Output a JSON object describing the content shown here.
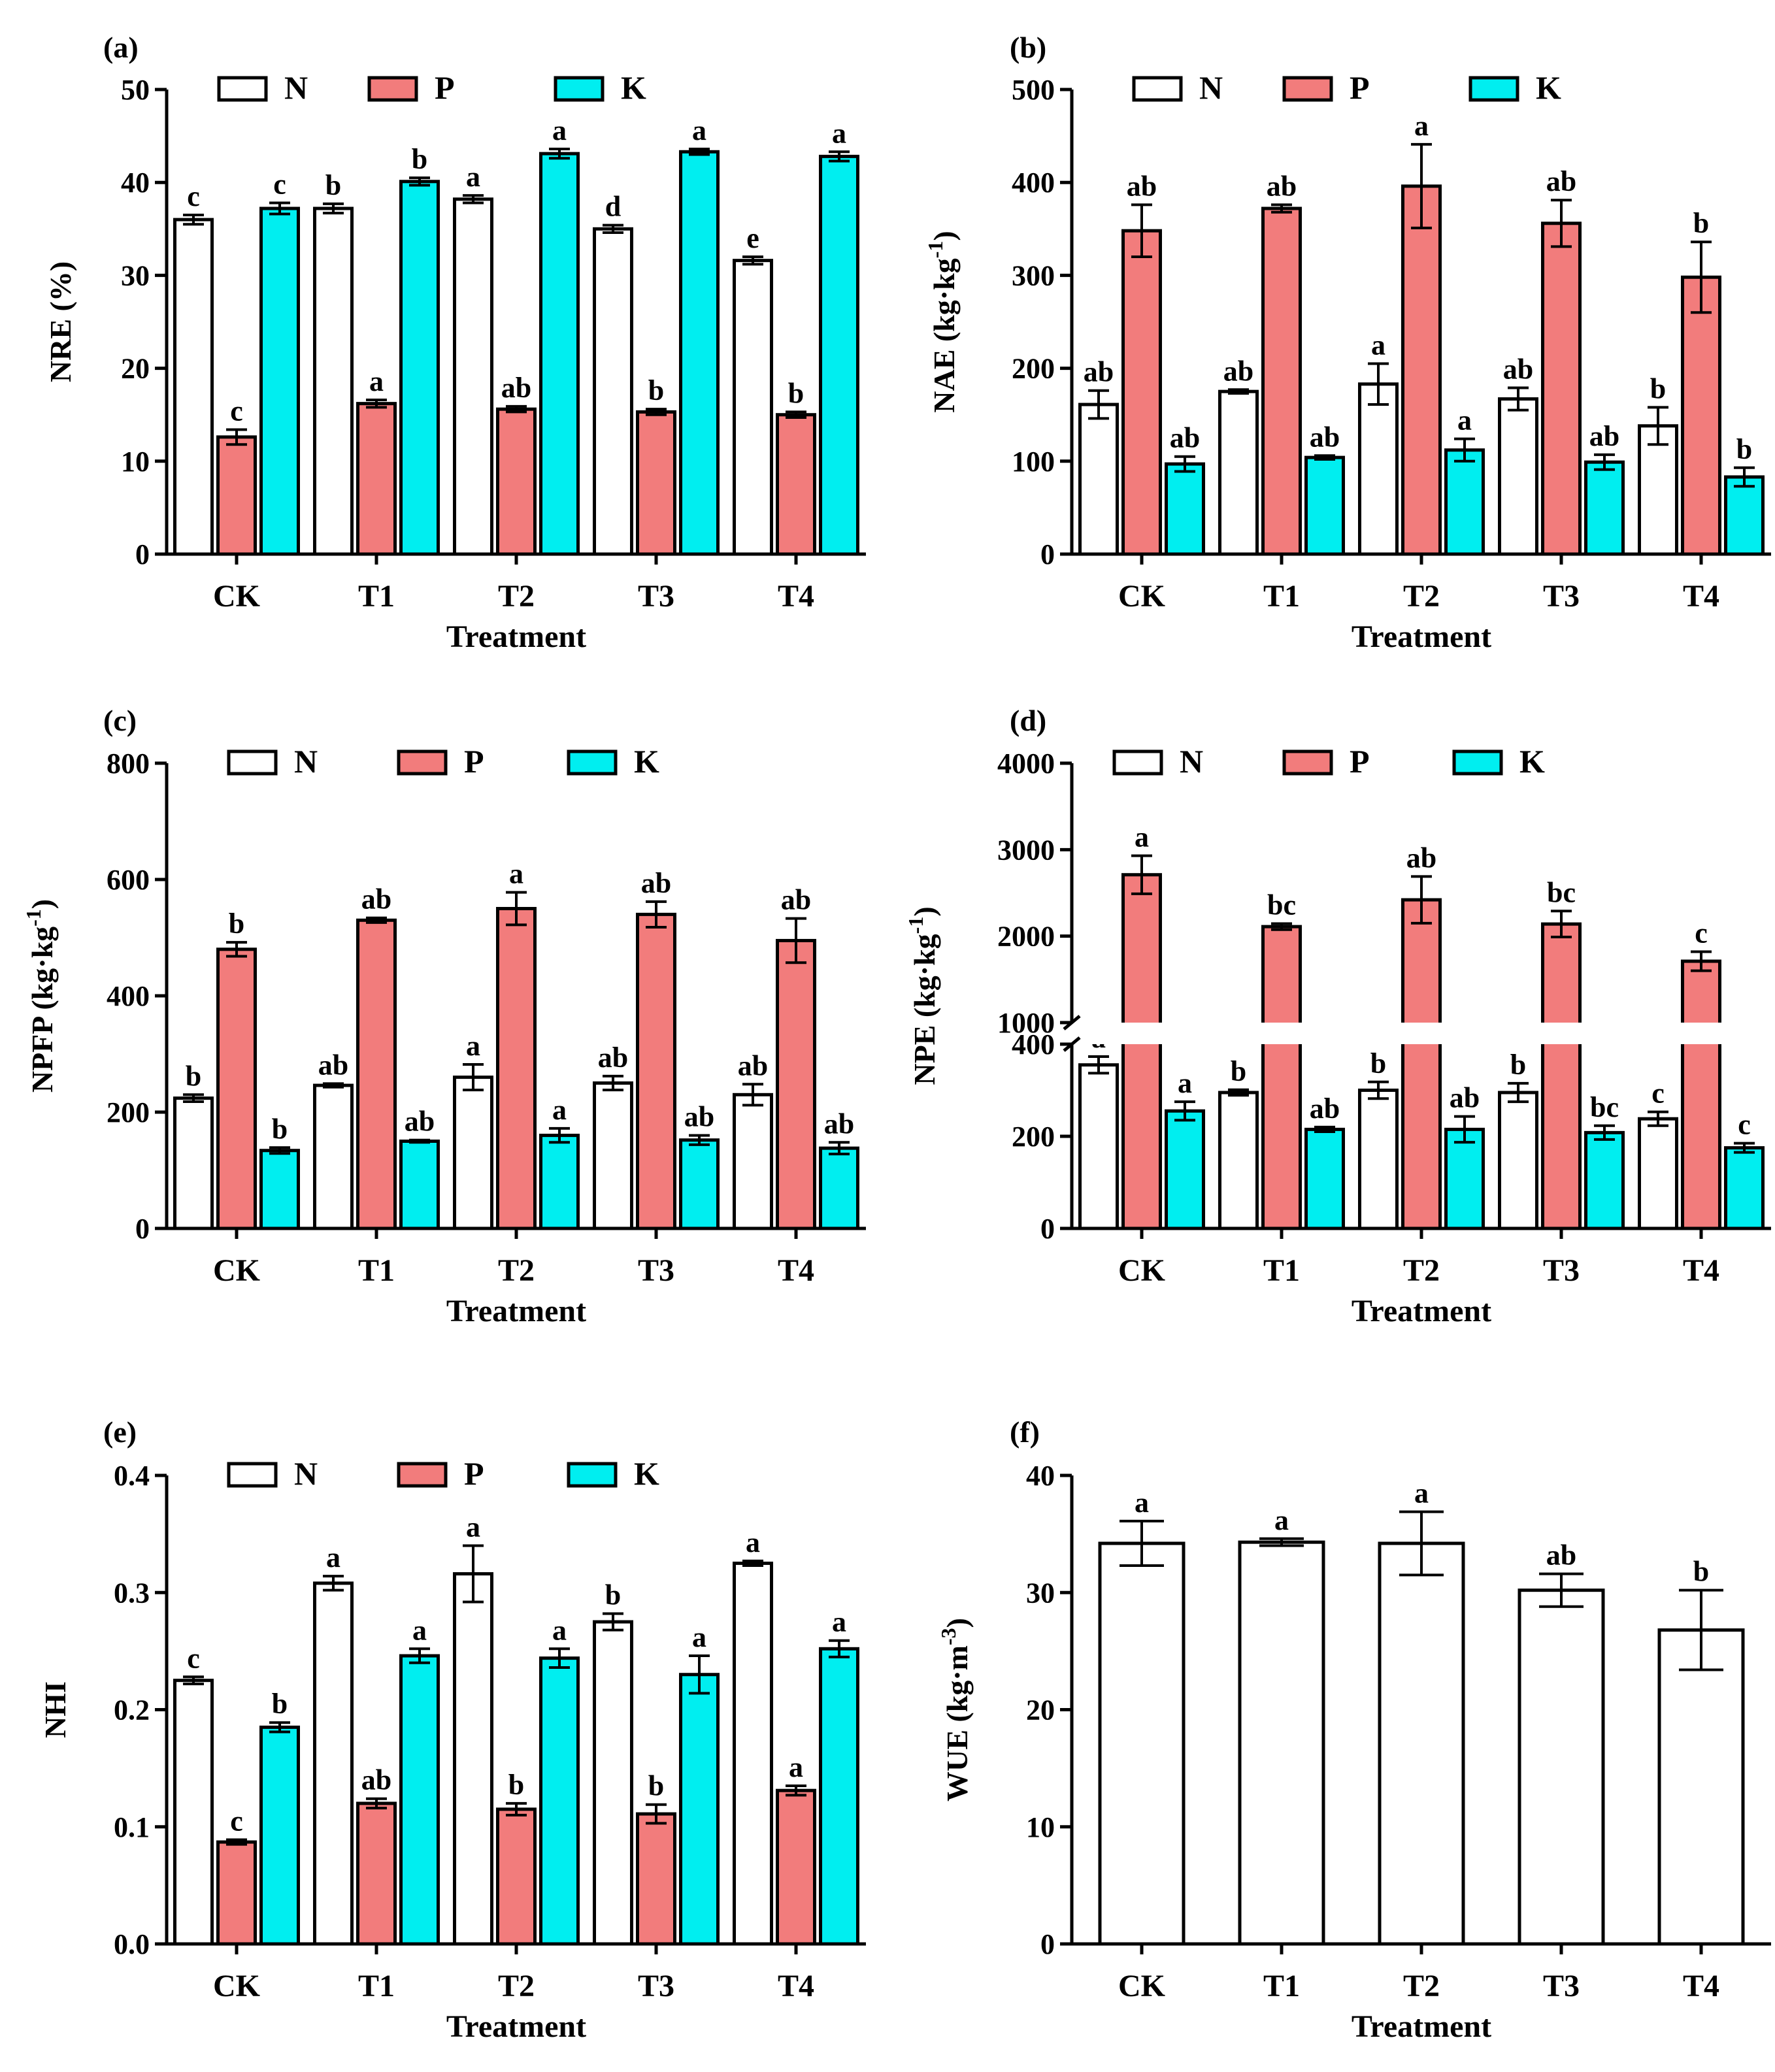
{
  "colors": {
    "N": "#ffffff",
    "P": "#f27c7c",
    "K": "#00eef0"
  },
  "chart_data": [
    {
      "panel": "(a)",
      "type": "bar",
      "categories": [
        "CK",
        "T1",
        "T2",
        "T3",
        "T4"
      ],
      "xlabel": "Treatment",
      "ylabel": "NRE  (%)",
      "yticks": [
        "0",
        "10",
        "20",
        "30",
        "40",
        "50"
      ],
      "ylim": [
        0,
        50
      ],
      "legend": [
        "N",
        "P",
        "K"
      ],
      "series": [
        {
          "name": "N",
          "values": [
            36,
            37.2,
            38.2,
            35,
            31.6
          ],
          "errors": [
            0.5,
            0.5,
            0.4,
            0.4,
            0.4
          ],
          "sig": [
            "c",
            "b",
            "a",
            "d",
            "e"
          ]
        },
        {
          "name": "P",
          "values": [
            12.6,
            16.2,
            15.6,
            15.3,
            15
          ],
          "errors": [
            0.8,
            0.4,
            0.3,
            0.3,
            0.3
          ],
          "sig": [
            "c",
            "a",
            "ab",
            "b",
            "b"
          ]
        },
        {
          "name": "K",
          "values": [
            37.2,
            40.1,
            43.1,
            43.3,
            42.8
          ],
          "errors": [
            0.6,
            0.4,
            0.5,
            0.3,
            0.5
          ],
          "sig": [
            "c",
            "b",
            "a",
            "a",
            "a"
          ]
        }
      ]
    },
    {
      "panel": "(b)",
      "type": "bar",
      "categories": [
        "CK",
        "T1",
        "T2",
        "T3",
        "T4"
      ],
      "xlabel": "Treatment",
      "ylabel": "NAE (kg·kg",
      "ylabel_sup": "-1",
      "ylabel_end": ")",
      "yticks": [
        "0",
        "100",
        "200",
        "300",
        "400",
        "500"
      ],
      "ylim": [
        0,
        500
      ],
      "legend": [
        "N",
        "P",
        "K"
      ],
      "series": [
        {
          "name": "N",
          "values": [
            161,
            175,
            183,
            167,
            138
          ],
          "errors": [
            15,
            2,
            22,
            12,
            20
          ],
          "sig": [
            "ab",
            "ab",
            "a",
            "ab",
            "b"
          ]
        },
        {
          "name": "P",
          "values": [
            348,
            372,
            396,
            356,
            298
          ],
          "errors": [
            28,
            4,
            45,
            25,
            38
          ],
          "sig": [
            "ab",
            "ab",
            "a",
            "ab",
            "b"
          ]
        },
        {
          "name": "K",
          "values": [
            97,
            104,
            112,
            99,
            83
          ],
          "errors": [
            8,
            2,
            12,
            8,
            10
          ],
          "sig": [
            "ab",
            "ab",
            "a",
            "ab",
            "b"
          ]
        }
      ]
    },
    {
      "panel": "(c)",
      "type": "bar",
      "categories": [
        "CK",
        "T1",
        "T2",
        "T3",
        "T4"
      ],
      "xlabel": "Treatment",
      "ylabel": "NPFP (kg·kg",
      "ylabel_sup": "-1",
      "ylabel_end": ")",
      "yticks": [
        "0",
        "200",
        "400",
        "600",
        "800"
      ],
      "ylim": [
        0,
        800
      ],
      "legend": [
        "N",
        "P",
        "K"
      ],
      "series": [
        {
          "name": "N",
          "values": [
            224,
            246,
            260,
            250,
            230
          ],
          "errors": [
            6,
            3,
            22,
            12,
            18
          ],
          "sig": [
            "b",
            "ab",
            "a",
            "ab",
            "ab"
          ]
        },
        {
          "name": "P",
          "values": [
            480,
            530,
            550,
            540,
            495
          ],
          "errors": [
            12,
            4,
            28,
            22,
            38
          ],
          "sig": [
            "b",
            "ab",
            "a",
            "ab",
            "ab"
          ]
        },
        {
          "name": "K",
          "values": [
            134,
            150,
            160,
            152,
            138
          ],
          "errors": [
            5,
            2,
            12,
            8,
            10
          ],
          "sig": [
            "b",
            "ab",
            "a",
            "ab",
            "ab"
          ]
        }
      ]
    },
    {
      "panel": "(d)",
      "type": "bar",
      "categories": [
        "CK",
        "T1",
        "T2",
        "T3",
        "T4"
      ],
      "xlabel": "Treatment",
      "ylabel": "NPE (kg·kg",
      "ylabel_sup": "-1",
      "ylabel_end": ")",
      "yticks_lower": [
        "0",
        "200",
        "400"
      ],
      "yticks_upper": [
        "1000",
        "2000",
        "3000",
        "4000"
      ],
      "ylim_lower": [
        0,
        400
      ],
      "ylim_upper": [
        1000,
        4000
      ],
      "legend": [
        "N",
        "P",
        "K"
      ],
      "series": [
        {
          "name": "N",
          "values": [
            355,
            295,
            300,
            295,
            238
          ],
          "errors": [
            18,
            6,
            18,
            20,
            15
          ],
          "sig": [
            "a",
            "b",
            "b",
            "b",
            "c"
          ]
        },
        {
          "name": "P",
          "values": [
            2710,
            2110,
            2420,
            2140,
            1710
          ],
          "errors": [
            220,
            35,
            270,
            150,
            110
          ],
          "sig": [
            "a",
            "bc",
            "ab",
            "bc",
            "c"
          ]
        },
        {
          "name": "K",
          "values": [
            255,
            215,
            215,
            208,
            175
          ],
          "errors": [
            20,
            5,
            28,
            15,
            10
          ],
          "sig": [
            "a",
            "ab",
            "ab",
            "bc",
            "c"
          ]
        }
      ]
    },
    {
      "panel": "(e)",
      "type": "bar",
      "categories": [
        "CK",
        "T1",
        "T2",
        "T3",
        "T4"
      ],
      "xlabel": "Treatment",
      "ylabel": "NHI",
      "yticks": [
        "0.0",
        "0.1",
        "0.2",
        "0.3",
        "0.4"
      ],
      "ylim": [
        0,
        0.4
      ],
      "legend": [
        "N",
        "P",
        "K"
      ],
      "series": [
        {
          "name": "N",
          "values": [
            0.225,
            0.308,
            0.316,
            0.275,
            0.325
          ],
          "errors": [
            0.003,
            0.006,
            0.024,
            0.007,
            0.002
          ],
          "sig": [
            "c",
            "a",
            "a",
            "b",
            "a"
          ]
        },
        {
          "name": "P",
          "values": [
            0.087,
            0.12,
            0.115,
            0.111,
            0.131
          ],
          "errors": [
            0.002,
            0.004,
            0.005,
            0.008,
            0.004
          ],
          "sig": [
            "c",
            "ab",
            "b",
            "b",
            "a"
          ]
        },
        {
          "name": "K",
          "values": [
            0.185,
            0.246,
            0.244,
            0.23,
            0.252
          ],
          "errors": [
            0.004,
            0.006,
            0.008,
            0.016,
            0.007
          ],
          "sig": [
            "b",
            "a",
            "a",
            "a",
            "a"
          ]
        }
      ]
    },
    {
      "panel": "(f)",
      "type": "bar",
      "categories": [
        "CK",
        "T1",
        "T2",
        "T3",
        "T4"
      ],
      "xlabel": "Treatment",
      "ylabel": "WUE (kg·m",
      "ylabel_sup": "-3",
      "ylabel_end": ")",
      "yticks": [
        "0",
        "10",
        "20",
        "30",
        "40"
      ],
      "ylim": [
        0,
        40
      ],
      "series": [
        {
          "name": "WUE",
          "values": [
            34.2,
            34.3,
            34.2,
            30.2,
            26.8
          ],
          "errors": [
            1.9,
            0.3,
            2.7,
            1.4,
            3.4
          ],
          "sig": [
            "a",
            "a",
            "a",
            "ab",
            "b"
          ]
        }
      ]
    }
  ]
}
